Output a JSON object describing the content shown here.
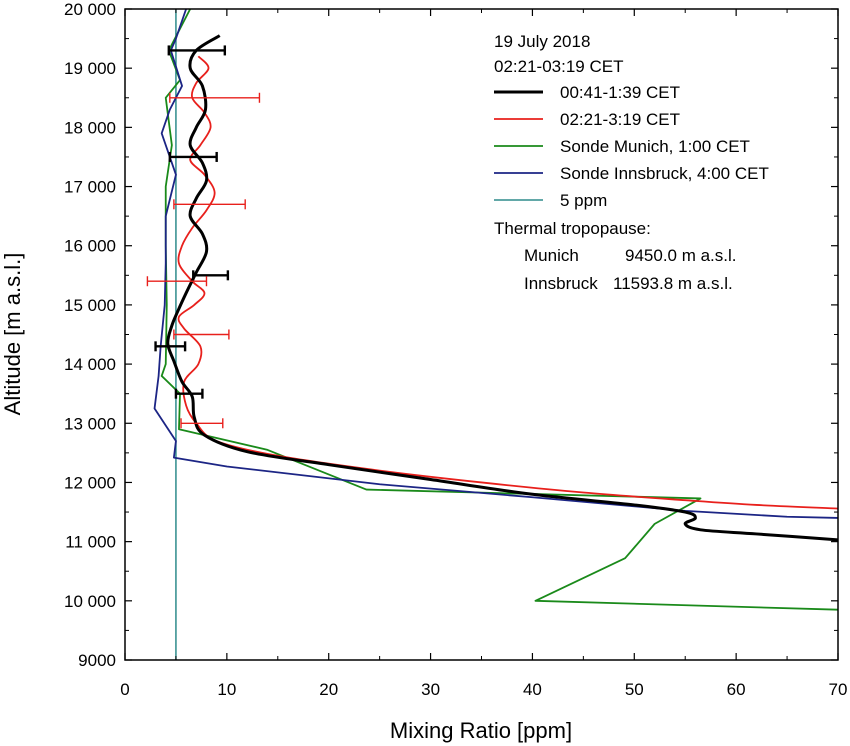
{
  "chart_data": {
    "type": "line",
    "xlabel": "Mixing Ratio [ppm]",
    "ylabel": "Altitude [m a.s.l.]",
    "xlim": [
      0,
      70
    ],
    "ylim": [
      9000,
      20000
    ],
    "x_ticks": [
      0,
      10,
      20,
      30,
      40,
      50,
      60,
      70
    ],
    "y_ticks": [
      9000,
      10000,
      11000,
      12000,
      13000,
      14000,
      15000,
      16000,
      17000,
      18000,
      19000,
      20000
    ],
    "x_tick_labels": [
      "0",
      "10",
      "20",
      "30",
      "40",
      "50",
      "60",
      "70"
    ],
    "y_tick_labels": [
      "9000",
      "10 000",
      "11 000",
      "12 000",
      "13 000",
      "14 000",
      "15 000",
      "16 000",
      "17 000",
      "18 000",
      "19 000",
      "20 000"
    ],
    "grid": false,
    "legend_position": "top-right",
    "header_lines": [
      "19 July 2018",
      "02:21-03:19 CET"
    ],
    "series": [
      {
        "name": "00:41-1:39 CET",
        "color": "#000000",
        "style": "line",
        "points": [
          [
            9.3,
            19550
          ],
          [
            7.0,
            19300
          ],
          [
            6.4,
            19000
          ],
          [
            7.6,
            18700
          ],
          [
            7.9,
            18300
          ],
          [
            7.0,
            18000
          ],
          [
            6.4,
            17700
          ],
          [
            7.6,
            17400
          ],
          [
            8.0,
            17100
          ],
          [
            7.0,
            16800
          ],
          [
            6.4,
            16500
          ],
          [
            7.6,
            16200
          ],
          [
            8.0,
            15900
          ],
          [
            7.0,
            15550
          ],
          [
            6.0,
            15200
          ],
          [
            5.2,
            14900
          ],
          [
            4.6,
            14650
          ],
          [
            4.2,
            14350
          ],
          [
            4.8,
            14050
          ],
          [
            5.6,
            13700
          ],
          [
            6.6,
            13450
          ],
          [
            6.8,
            13100
          ],
          [
            7.8,
            12800
          ],
          [
            12,
            12520
          ],
          [
            20,
            12300
          ],
          [
            30,
            12050
          ],
          [
            40,
            11800
          ],
          [
            50,
            11620
          ],
          [
            55,
            11500
          ],
          [
            56,
            11400
          ],
          [
            55,
            11300
          ],
          [
            56.5,
            11200
          ],
          [
            62,
            11130
          ],
          [
            70,
            11030
          ]
        ]
      },
      {
        "name": "02:21-3:19 CET",
        "color": "#e8201c",
        "style": "line",
        "points": [
          [
            7.2,
            19200
          ],
          [
            8.2,
            19000
          ],
          [
            7.0,
            18750
          ],
          [
            6.6,
            18500
          ],
          [
            7.8,
            18250
          ],
          [
            8.4,
            18000
          ],
          [
            7.4,
            17700
          ],
          [
            6.4,
            17450
          ],
          [
            7.8,
            17200
          ],
          [
            8.8,
            16900
          ],
          [
            8.0,
            16600
          ],
          [
            6.6,
            16300
          ],
          [
            5.6,
            16000
          ],
          [
            5.3,
            15700
          ],
          [
            6.6,
            15400
          ],
          [
            7.8,
            15200
          ],
          [
            6.8,
            15000
          ],
          [
            5.3,
            14800
          ],
          [
            5.8,
            14600
          ],
          [
            7.4,
            14300
          ],
          [
            7.2,
            14000
          ],
          [
            5.8,
            13700
          ],
          [
            6.0,
            13300
          ],
          [
            7.0,
            13000
          ],
          [
            9,
            12700
          ],
          [
            15,
            12450
          ],
          [
            25,
            12200
          ],
          [
            35,
            12000
          ],
          [
            45,
            11830
          ],
          [
            55,
            11700
          ],
          [
            62,
            11620
          ],
          [
            70,
            11560
          ]
        ]
      },
      {
        "name": "Sonde Munich, 1:00 CET",
        "color": "#1a8a1a",
        "style": "line",
        "points": [
          [
            6.4,
            20000
          ],
          [
            4.3,
            19300
          ],
          [
            5.4,
            18800
          ],
          [
            4.0,
            18500
          ],
          [
            4.6,
            17700
          ],
          [
            4.0,
            17000
          ],
          [
            4.0,
            16000
          ],
          [
            4.1,
            15000
          ],
          [
            4.0,
            14000
          ],
          [
            3.6,
            13800
          ],
          [
            5.4,
            13500
          ],
          [
            5.3,
            12900
          ],
          [
            14,
            12550
          ],
          [
            23.7,
            11880
          ],
          [
            56.5,
            11730
          ],
          [
            52,
            11300
          ],
          [
            49.1,
            10720
          ],
          [
            40.3,
            10000
          ],
          [
            70,
            9850
          ]
        ]
      },
      {
        "name": "Sonde Innsbruck, 4:00 CET",
        "color": "#1c2585",
        "style": "line",
        "points": [
          [
            6.0,
            20000
          ],
          [
            5.0,
            19500
          ],
          [
            4.5,
            19300
          ],
          [
            5.6,
            18700
          ],
          [
            4.4,
            18300
          ],
          [
            3.6,
            17900
          ],
          [
            5.0,
            17200
          ],
          [
            4.0,
            16500
          ],
          [
            4.0,
            15700
          ],
          [
            3.9,
            15000
          ],
          [
            3.5,
            14300
          ],
          [
            3.3,
            13800
          ],
          [
            2.9,
            13250
          ],
          [
            5.0,
            12700
          ],
          [
            4.8,
            12420
          ],
          [
            10,
            12270
          ],
          [
            25,
            11970
          ],
          [
            40,
            11750
          ],
          [
            55,
            11520
          ],
          [
            65,
            11420
          ],
          [
            70,
            11400
          ]
        ]
      },
      {
        "name": "5 ppm",
        "color": "#2e8b8b",
        "style": "vline",
        "x": 5
      }
    ],
    "error_bars": [
      {
        "series": "00:41-1:39 CET",
        "y": 19300,
        "xmin": 4.3,
        "xmax": 9.8
      },
      {
        "series": "00:41-1:39 CET",
        "y": 17500,
        "xmin": 4.4,
        "xmax": 9.0
      },
      {
        "series": "00:41-1:39 CET",
        "y": 15500,
        "xmin": 6.7,
        "xmax": 10.1
      },
      {
        "series": "00:41-1:39 CET",
        "y": 14300,
        "xmin": 3.0,
        "xmax": 5.9
      },
      {
        "series": "00:41-1:39 CET",
        "y": 13500,
        "xmin": 5.0,
        "xmax": 7.6
      },
      {
        "series": "02:21-3:19 CET",
        "y": 18500,
        "xmin": 4.4,
        "xmax": 13.2
      },
      {
        "series": "02:21-3:19 CET",
        "y": 16700,
        "xmin": 4.8,
        "xmax": 11.8
      },
      {
        "series": "02:21-3:19 CET",
        "y": 15400,
        "xmin": 2.2,
        "xmax": 8.0
      },
      {
        "series": "02:21-3:19 CET",
        "y": 14500,
        "xmin": 4.8,
        "xmax": 10.2
      },
      {
        "series": "02:21-3:19 CET",
        "y": 13000,
        "xmin": 5.5,
        "xmax": 9.6
      }
    ],
    "annotation": {
      "title": "Thermal tropopause:",
      "rows": [
        {
          "site": "Munich",
          "value": "9450.0 m a.s.l."
        },
        {
          "site": "Innsbruck",
          "value": "11593.8 m a.s.l."
        }
      ]
    }
  }
}
